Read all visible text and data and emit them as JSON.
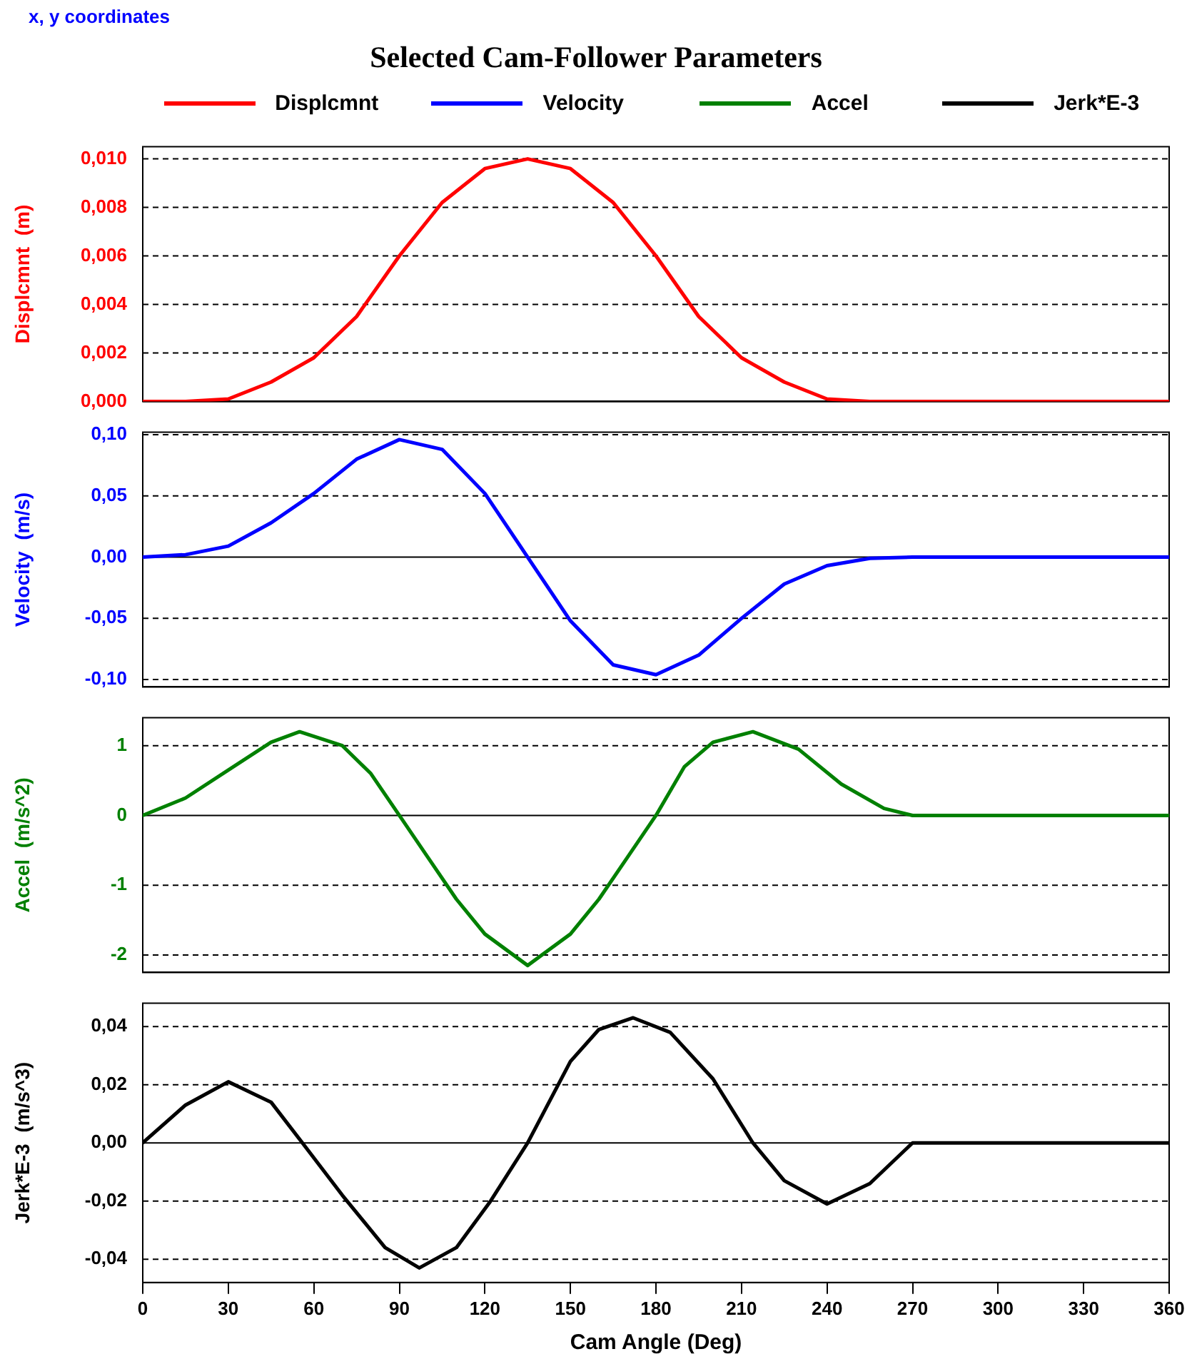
{
  "chart_data": [
    {
      "type": "line",
      "title": "Selected Cam-Follower Parameters",
      "annotations": [
        "x, y coordinates"
      ],
      "ylabel": "Displcmnt  (m)",
      "legend": "top",
      "grid": "y",
      "tick_labels": "y",
      "x": [
        0,
        15,
        30,
        45,
        60,
        75,
        90,
        105,
        120,
        135,
        150,
        165,
        180,
        195,
        210,
        225,
        240,
        255,
        270,
        360
      ],
      "series": [
        {
          "name": "Displcmnt",
          "color": "#ff0000",
          "values": [
            0,
            0,
            0.0001,
            0.0008,
            0.0018,
            0.0035,
            0.006,
            0.0082,
            0.0096,
            0.01,
            0.0096,
            0.0082,
            0.006,
            0.0035,
            0.0018,
            0.0008,
            0.0001,
            0,
            0,
            0
          ]
        }
      ],
      "xlim": [
        0,
        360
      ],
      "ylim": [
        0,
        0.0105
      ],
      "yticks": [
        {
          "value": 0,
          "label": "0,000"
        },
        {
          "value": 0.002,
          "label": "0,002"
        },
        {
          "value": 0.004,
          "label": "0,004"
        },
        {
          "value": 0.006,
          "label": "0,006"
        },
        {
          "value": 0.008,
          "label": "0,008"
        },
        {
          "value": 0.01,
          "label": "0,010"
        }
      ]
    },
    {
      "type": "line",
      "ylabel": "Velocity  (m/s)",
      "legend": "top",
      "grid": "y",
      "tick_labels": "y",
      "x": [
        0,
        15,
        30,
        45,
        60,
        75,
        90,
        105,
        120,
        135,
        150,
        165,
        180,
        195,
        210,
        225,
        240,
        255,
        270,
        360
      ],
      "series": [
        {
          "name": "Velocity",
          "color": "#0000ff",
          "values": [
            0,
            0.002,
            0.009,
            0.028,
            0.052,
            0.08,
            0.096,
            0.088,
            0.052,
            0,
            -0.052,
            -0.088,
            -0.096,
            -0.08,
            -0.05,
            -0.022,
            -0.007,
            -0.001,
            0,
            0
          ]
        }
      ],
      "xlim": [
        0,
        360
      ],
      "ylim": [
        -0.106,
        0.102
      ],
      "yticks": [
        {
          "value": -0.1,
          "label": "-0,10"
        },
        {
          "value": -0.05,
          "label": "-0,05"
        },
        {
          "value": 0,
          "label": "0,00"
        },
        {
          "value": 0.05,
          "label": "0,05"
        },
        {
          "value": 0.1,
          "label": "0,10"
        }
      ]
    },
    {
      "type": "line",
      "ylabel": "Accel  (m/s^2)",
      "legend": "top",
      "grid": "y",
      "tick_labels": "y",
      "x": [
        0,
        15,
        30,
        45,
        55,
        70,
        80,
        90,
        100,
        110,
        120,
        135,
        150,
        160,
        170,
        180,
        190,
        200,
        214,
        230,
        245,
        260,
        270,
        360
      ],
      "series": [
        {
          "name": "Accel",
          "color": "#008000",
          "values": [
            0,
            0.25,
            0.65,
            1.05,
            1.2,
            1.0,
            0.6,
            0,
            -0.6,
            -1.2,
            -1.7,
            -2.15,
            -1.7,
            -1.2,
            -0.6,
            0,
            0.7,
            1.05,
            1.2,
            0.95,
            0.45,
            0.1,
            0,
            0
          ]
        }
      ],
      "xlim": [
        0,
        360
      ],
      "ylim": [
        -2.25,
        1.4
      ],
      "yticks": [
        -2,
        -1,
        0,
        1
      ]
    },
    {
      "type": "line",
      "ylabel": "Jerk*E-3  (m/s^3)",
      "xlabel": "Cam Angle (Deg)",
      "legend": "top",
      "grid": "y",
      "x": [
        0,
        15,
        30,
        45,
        56,
        70,
        85,
        97,
        110,
        122,
        135,
        150,
        160,
        172,
        185,
        200,
        214,
        225,
        240,
        255,
        270,
        360
      ],
      "series": [
        {
          "name": "Jerk*E-3",
          "color": "#000000",
          "values": [
            0,
            0.013,
            0.021,
            0.014,
            0,
            -0.018,
            -0.036,
            -0.043,
            -0.036,
            -0.02,
            0,
            0.028,
            0.039,
            0.043,
            0.038,
            0.022,
            0,
            -0.013,
            -0.021,
            -0.014,
            0,
            0
          ]
        }
      ],
      "xlim": [
        0,
        360
      ],
      "xticks": [
        0,
        30,
        60,
        90,
        120,
        150,
        180,
        210,
        240,
        270,
        300,
        330,
        360
      ],
      "ylim": [
        -0.048,
        0.048
      ],
      "yticks": [
        {
          "value": -0.04,
          "label": "-0,04"
        },
        {
          "value": -0.02,
          "label": "-0,02"
        },
        {
          "value": 0,
          "label": "0,00"
        },
        {
          "value": 0.02,
          "label": "0,02"
        },
        {
          "value": 0.04,
          "label": "0,04"
        }
      ]
    }
  ]
}
